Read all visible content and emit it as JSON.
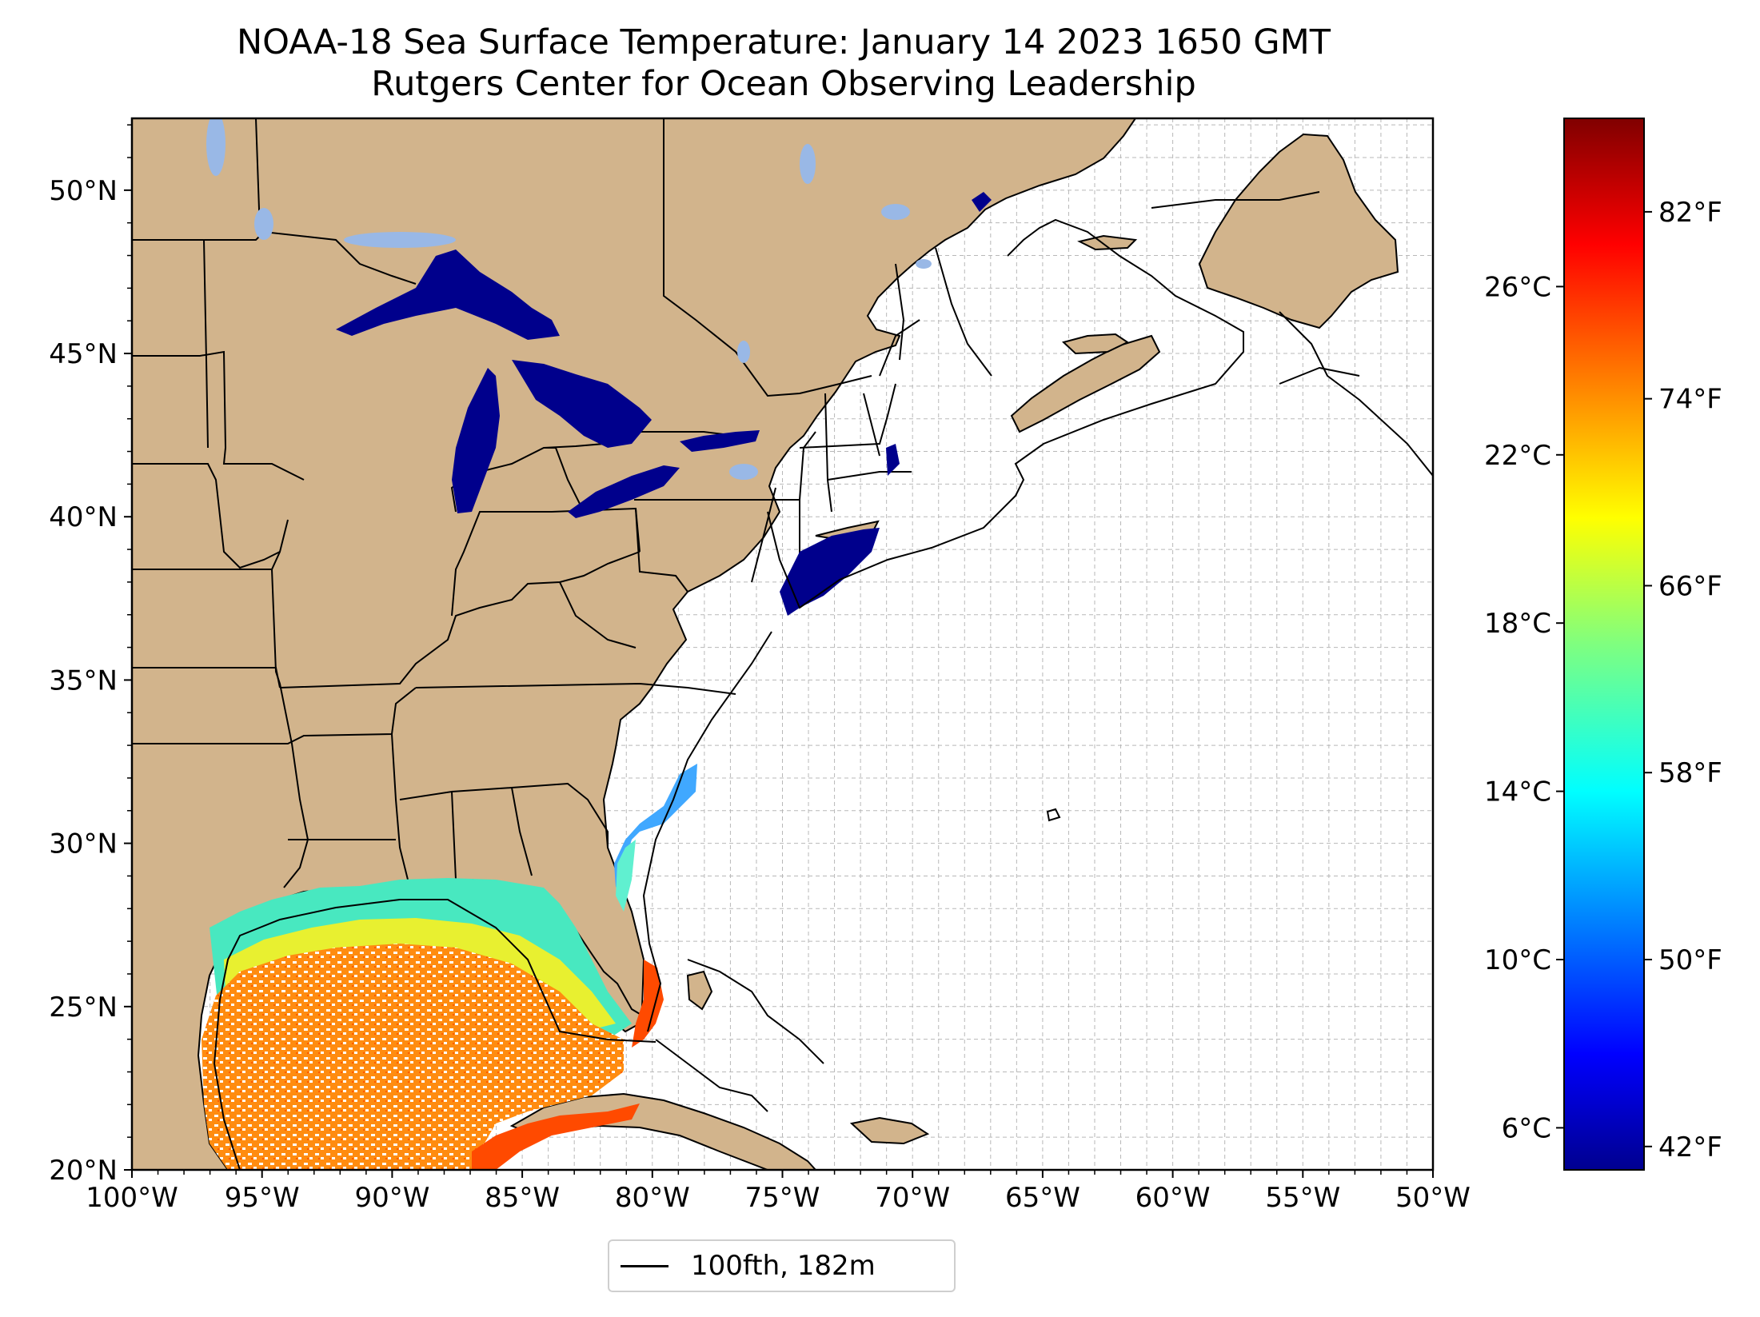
{
  "title": "NOAA-18 Sea Surface Temperature: January 14 2023 1650 GMT",
  "subtitle": "Rutgers Center for Ocean Observing Leadership",
  "map": {
    "lon_range": [
      -100,
      -50
    ],
    "lat_range": [
      20,
      52.2
    ],
    "grid": true,
    "land_color": "#D2B48C",
    "lake_color": "#99B8E6"
  },
  "axes": {
    "lon_ticks": [
      {
        "value": -100,
        "label": "100°W"
      },
      {
        "value": -95,
        "label": "95°W"
      },
      {
        "value": -90,
        "label": "90°W"
      },
      {
        "value": -85,
        "label": "85°W"
      },
      {
        "value": -80,
        "label": "80°W"
      },
      {
        "value": -75,
        "label": "75°W"
      },
      {
        "value": -70,
        "label": "70°W"
      },
      {
        "value": -65,
        "label": "65°W"
      },
      {
        "value": -60,
        "label": "60°W"
      },
      {
        "value": -55,
        "label": "55°W"
      },
      {
        "value": -50,
        "label": "50°W"
      }
    ],
    "lat_ticks": [
      {
        "value": 20,
        "label": "20°N"
      },
      {
        "value": 25,
        "label": "25°N"
      },
      {
        "value": 30,
        "label": "30°N"
      },
      {
        "value": 35,
        "label": "35°N"
      },
      {
        "value": 40,
        "label": "40°N"
      },
      {
        "value": 45,
        "label": "45°N"
      },
      {
        "value": 50,
        "label": "50°N"
      }
    ]
  },
  "colorbar": {
    "colormap": "jet",
    "range_c": [
      5.0,
      30.0
    ],
    "celsius_ticks": [
      {
        "value": 6,
        "label": "6°C"
      },
      {
        "value": 10,
        "label": "10°C"
      },
      {
        "value": 14,
        "label": "14°C"
      },
      {
        "value": 18,
        "label": "18°C"
      },
      {
        "value": 22,
        "label": "22°C"
      },
      {
        "value": 26,
        "label": "26°C"
      }
    ],
    "fahrenheit_ticks": [
      {
        "value": 42,
        "label": "42°F"
      },
      {
        "value": 50,
        "label": "50°F"
      },
      {
        "value": 58,
        "label": "58°F"
      },
      {
        "value": 66,
        "label": "66°F"
      },
      {
        "value": 74,
        "label": "74°F"
      },
      {
        "value": 82,
        "label": "82°F"
      }
    ]
  },
  "legend": {
    "label": "100fth, 182m",
    "line_color": "#000000"
  }
}
